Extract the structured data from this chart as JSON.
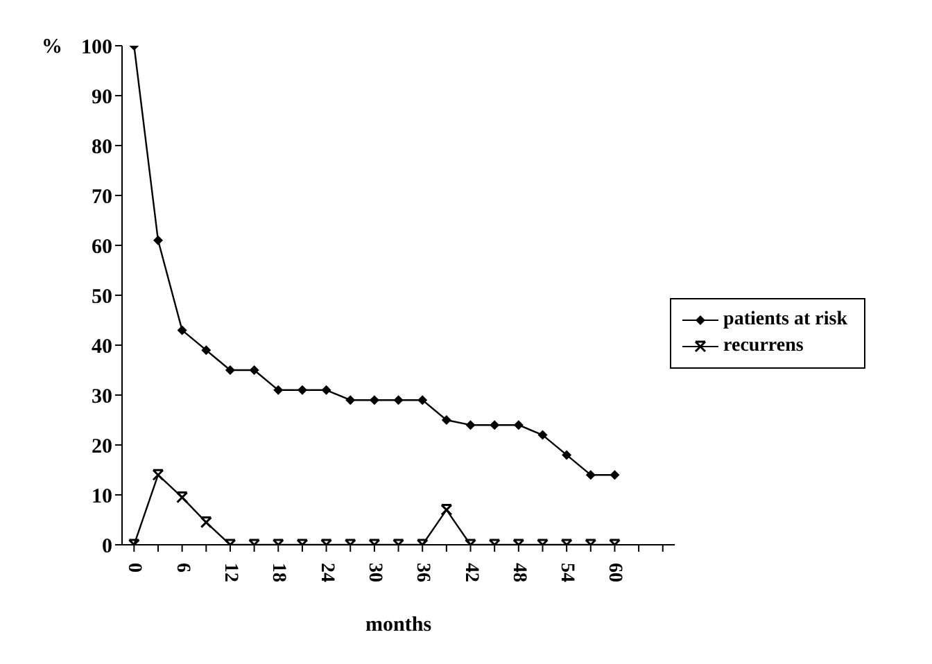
{
  "chart_data": {
    "type": "line",
    "xlabel": "months",
    "ylabel": "%",
    "x": [
      0,
      3,
      6,
      9,
      12,
      15,
      18,
      21,
      24,
      27,
      30,
      33,
      36,
      39,
      42,
      45,
      48,
      51,
      54,
      57,
      60
    ],
    "series": [
      {
        "name": "patients at risk",
        "color": "#000000",
        "marker": "diamond",
        "values": [
          100,
          61,
          43,
          39,
          35,
          35,
          31,
          31,
          31,
          29,
          29,
          29,
          29,
          25,
          24,
          24,
          24,
          22,
          18,
          14,
          14
        ]
      },
      {
        "name": "recurrens",
        "color": "#000000",
        "marker": "cross",
        "values": [
          0,
          14,
          9.5,
          4.5,
          0,
          0,
          0,
          0,
          0,
          0,
          0,
          0,
          0,
          7,
          0,
          0,
          0,
          0,
          0,
          0,
          0
        ]
      }
    ],
    "xlim": [
      -1.5,
      67.5
    ],
    "xticks": [
      0,
      {
        "value": 3,
        "label": null
      },
      6,
      {
        "value": 9,
        "label": null
      },
      12,
      {
        "value": 15,
        "label": null
      },
      18,
      {
        "value": 21,
        "label": null
      },
      24,
      {
        "value": 27,
        "label": null
      },
      30,
      {
        "value": 33,
        "label": null
      },
      36,
      {
        "value": 39,
        "label": null
      },
      42,
      {
        "value": 45,
        "label": null
      },
      48,
      {
        "value": 51,
        "label": null
      },
      54,
      {
        "value": 57,
        "label": null
      },
      60,
      {
        "value": 63,
        "label": null
      },
      {
        "value": 66,
        "label": null
      }
    ],
    "ylim": [
      0,
      100
    ],
    "yticks": [
      0,
      10,
      20,
      30,
      40,
      50,
      60,
      70,
      80,
      90,
      100
    ],
    "grid": false,
    "legend": "right",
    "line_style": "solid"
  }
}
